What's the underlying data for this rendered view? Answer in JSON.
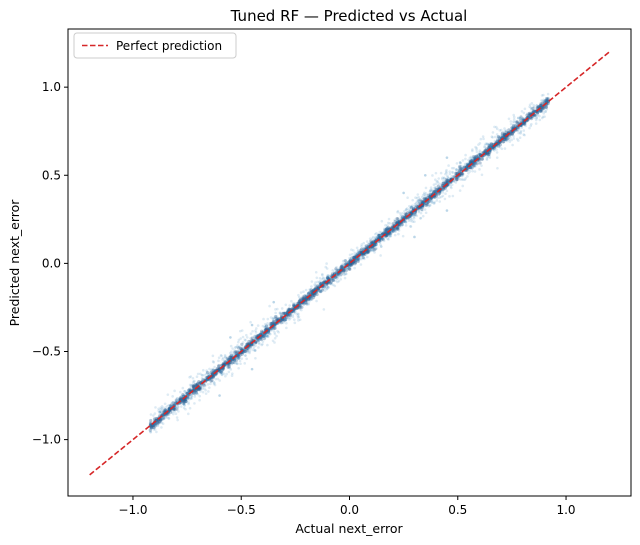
{
  "chart_data": {
    "type": "scatter",
    "title": "Tuned RF — Predicted vs Actual",
    "xlabel": "Actual next_error",
    "ylabel": "Predicted next_error",
    "xlim": [
      -1.3,
      1.3
    ],
    "ylim": [
      -1.32,
      1.33
    ],
    "xticks": [
      -1.0,
      -0.5,
      0.0,
      0.5,
      1.0
    ],
    "xtick_labels": [
      "−1.0",
      "−0.5",
      "0.0",
      "0.5",
      "1.0"
    ],
    "yticks": [
      -1.0,
      -0.5,
      0.0,
      0.5,
      1.0
    ],
    "ytick_labels": [
      "−1.0",
      "−0.5",
      "0.0",
      "0.5",
      "1.0"
    ],
    "grid": false,
    "legend": {
      "placement": "top-left",
      "entries": [
        "Perfect prediction"
      ]
    },
    "reference_line": {
      "name": "Perfect prediction",
      "color": "#d62728",
      "style": "dashed",
      "x": [
        -1.2,
        1.2
      ],
      "y": [
        -1.2,
        1.2
      ]
    },
    "scatter": {
      "color": "#1f77b4",
      "alpha": 0.15,
      "x_range": [
        -0.92,
        0.92
      ],
      "relationship": "predicted ≈ actual",
      "points": [
        [
          -0.9,
          -0.91
        ],
        [
          -0.85,
          -0.84
        ],
        [
          -0.8,
          -0.79
        ],
        [
          -0.75,
          -0.76
        ],
        [
          -0.7,
          -0.7
        ],
        [
          -0.65,
          -0.63
        ],
        [
          -0.6,
          -0.61
        ],
        [
          -0.55,
          -0.54
        ],
        [
          -0.5,
          -0.5
        ],
        [
          -0.45,
          -0.46
        ],
        [
          -0.4,
          -0.39
        ],
        [
          -0.35,
          -0.35
        ],
        [
          -0.3,
          -0.31
        ],
        [
          -0.25,
          -0.24
        ],
        [
          -0.2,
          -0.2
        ],
        [
          -0.15,
          -0.16
        ],
        [
          -0.1,
          -0.09
        ],
        [
          -0.05,
          -0.05
        ],
        [
          0.0,
          0.0
        ],
        [
          0.05,
          0.05
        ],
        [
          0.1,
          0.11
        ],
        [
          0.15,
          0.15
        ],
        [
          0.2,
          0.19
        ],
        [
          0.25,
          0.26
        ],
        [
          0.3,
          0.3
        ],
        [
          0.35,
          0.34
        ],
        [
          0.4,
          0.41
        ],
        [
          0.45,
          0.45
        ],
        [
          0.5,
          0.49
        ],
        [
          0.55,
          0.56
        ],
        [
          0.6,
          0.6
        ],
        [
          0.65,
          0.64
        ],
        [
          0.7,
          0.71
        ],
        [
          0.75,
          0.75
        ],
        [
          0.8,
          0.79
        ],
        [
          0.85,
          0.86
        ],
        [
          0.9,
          0.9
        ],
        [
          -0.55,
          -0.42
        ],
        [
          -0.45,
          -0.35
        ],
        [
          -0.35,
          -0.22
        ],
        [
          0.25,
          0.4
        ],
        [
          0.35,
          0.5
        ],
        [
          0.45,
          0.6
        ],
        [
          -0.6,
          -0.75
        ],
        [
          -0.45,
          -0.6
        ],
        [
          0.3,
          0.15
        ],
        [
          0.45,
          0.3
        ]
      ]
    }
  }
}
